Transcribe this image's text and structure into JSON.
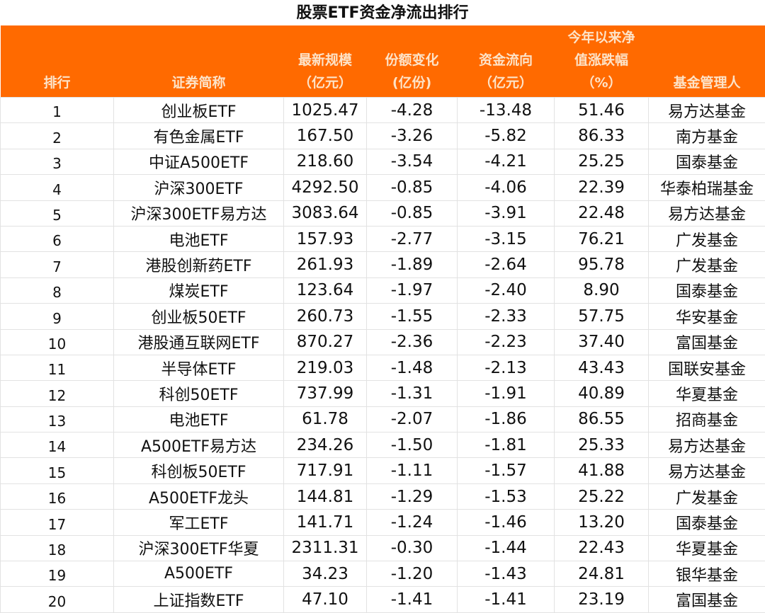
{
  "title": "股票ETF资金净流出排行",
  "colors": {
    "header_bg": "#ff6a00",
    "header_text": "#fde3c8"
  },
  "headers": [
    {
      "lines": [
        "排行"
      ]
    },
    {
      "lines": [
        "证券简称"
      ]
    },
    {
      "lines": [
        "最新规模",
        "（亿元）"
      ]
    },
    {
      "lines": [
        "份额变化",
        "(亿份)"
      ]
    },
    {
      "lines": [
        "资金流向",
        "（亿元）"
      ]
    },
    {
      "lines": [
        "今年以来净",
        "值涨跌幅",
        "（%）"
      ]
    },
    {
      "lines": [
        "基金管理人"
      ]
    }
  ],
  "rows": [
    [
      "1",
      "创业板ETF",
      "1025.47",
      "-4.28",
      "-13.48",
      "51.46",
      "易方达基金"
    ],
    [
      "2",
      "有色金属ETF",
      "167.50",
      "-3.26",
      "-5.82",
      "86.33",
      "南方基金"
    ],
    [
      "3",
      "中证A500ETF",
      "218.60",
      "-3.54",
      "-4.21",
      "25.25",
      "国泰基金"
    ],
    [
      "4",
      "沪深300ETF",
      "4292.50",
      "-0.85",
      "-4.06",
      "22.39",
      "华泰柏瑞基金"
    ],
    [
      "5",
      "沪深300ETF易方达",
      "3083.64",
      "-0.85",
      "-3.91",
      "22.48",
      "易方达基金"
    ],
    [
      "6",
      "电池ETF",
      "157.93",
      "-2.77",
      "-3.15",
      "76.21",
      "广发基金"
    ],
    [
      "7",
      "港股创新药ETF",
      "261.93",
      "-1.89",
      "-2.64",
      "95.78",
      "广发基金"
    ],
    [
      "8",
      "煤炭ETF",
      "123.64",
      "-1.97",
      "-2.40",
      "8.90",
      "国泰基金"
    ],
    [
      "9",
      "创业板50ETF",
      "260.73",
      "-1.55",
      "-2.33",
      "57.75",
      "华安基金"
    ],
    [
      "10",
      "港股通互联网ETF",
      "870.27",
      "-2.36",
      "-2.23",
      "37.40",
      "富国基金"
    ],
    [
      "11",
      "半导体ETF",
      "219.03",
      "-1.48",
      "-2.13",
      "43.43",
      "国联安基金"
    ],
    [
      "12",
      "科创50ETF",
      "737.99",
      "-1.31",
      "-1.91",
      "40.89",
      "华夏基金"
    ],
    [
      "13",
      "电池ETF",
      "61.78",
      "-2.07",
      "-1.86",
      "86.55",
      "招商基金"
    ],
    [
      "14",
      "A500ETF易方达",
      "234.26",
      "-1.50",
      "-1.81",
      "25.33",
      "易方达基金"
    ],
    [
      "15",
      "科创板50ETF",
      "717.91",
      "-1.11",
      "-1.57",
      "41.88",
      "易方达基金"
    ],
    [
      "16",
      "A500ETF龙头",
      "144.81",
      "-1.29",
      "-1.53",
      "25.22",
      "广发基金"
    ],
    [
      "17",
      "军工ETF",
      "141.71",
      "-1.24",
      "-1.46",
      "13.20",
      "国泰基金"
    ],
    [
      "18",
      "沪深300ETF华夏",
      "2311.31",
      "-0.30",
      "-1.44",
      "22.43",
      "华夏基金"
    ],
    [
      "19",
      "A500ETF",
      "34.23",
      "-1.20",
      "-1.43",
      "24.81",
      "银华基金"
    ],
    [
      "20",
      "上证指数ETF",
      "47.10",
      "-1.41",
      "-1.41",
      "23.19",
      "富国基金"
    ]
  ]
}
